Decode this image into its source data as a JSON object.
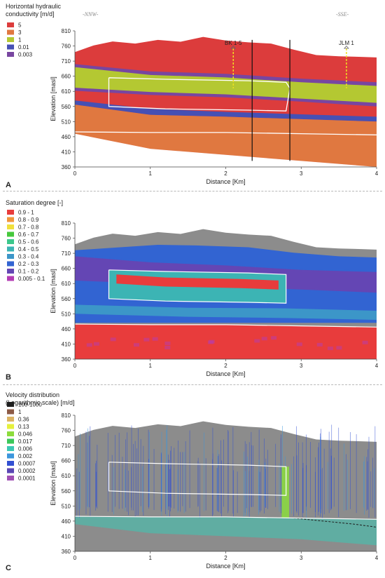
{
  "chart_data": [
    {
      "type": "heatmap",
      "panel_label": "A",
      "legend_title": "Horizontal hydraulic\nconductivity [m/d]",
      "xlabel": "Distance [Km]",
      "ylabel": "Elevation [masl]",
      "xlim": [
        0,
        4
      ],
      "ylim": [
        360,
        810
      ],
      "xticks": [
        0,
        1,
        2,
        3,
        4
      ],
      "yticks": [
        810,
        760,
        710,
        660,
        610,
        560,
        510,
        460,
        410,
        360
      ],
      "direction_left": "-NNW-",
      "direction_right": "-SSE-",
      "legend": [
        {
          "label": "5",
          "color": "#dc3c3c"
        },
        {
          "label": "3",
          "color": "#e07840"
        },
        {
          "label": "1",
          "color": "#b4c832"
        },
        {
          "label": "0.01",
          "color": "#4650b4"
        },
        {
          "label": "0.003",
          "color": "#7846a0"
        }
      ],
      "wells": [
        {
          "name": "BK 1-5",
          "x": 2.1
        },
        {
          "name": "JLM 1",
          "x": 3.6
        }
      ],
      "faults_x": [
        2.35,
        2.85
      ]
    },
    {
      "type": "heatmap",
      "panel_label": "B",
      "legend_title": "Saturation degree [-]",
      "xlabel": "Distance [Km]",
      "ylabel": "Elevation [masl]",
      "xlim": [
        0,
        4
      ],
      "ylim": [
        360,
        810
      ],
      "xticks": [
        0,
        1,
        2,
        3,
        4
      ],
      "yticks": [
        810,
        760,
        710,
        660,
        610,
        560,
        510,
        460,
        410,
        360
      ],
      "legend": [
        {
          "label": "0.9 - 1",
          "color": "#e83c3c"
        },
        {
          "label": "0.8 - 0.9",
          "color": "#f0963c"
        },
        {
          "label": "0.7 - 0.8",
          "color": "#f0e03c"
        },
        {
          "label": "0.6 - 0.7",
          "color": "#46c83c"
        },
        {
          "label": "0.5 - 0.6",
          "color": "#3cc88c"
        },
        {
          "label": "0.4 - 0.5",
          "color": "#3cb4b4"
        },
        {
          "label": "0.3 - 0.4",
          "color": "#3c96c8"
        },
        {
          "label": "0.2 - 0.3",
          "color": "#3264d2"
        },
        {
          "label": "0.1 - 0.2",
          "color": "#6446b4"
        },
        {
          "label": "0.005 - 0.1",
          "color": "#b43cb4"
        }
      ]
    },
    {
      "type": "heatmap",
      "panel_label": "C",
      "legend_title": "Velocity distribution\n(Logarithmic scale) [m/d]",
      "xlabel": "Distance [Km]",
      "ylabel": "Elevation [masl]",
      "xlim": [
        0,
        4
      ],
      "ylim": [
        360,
        810
      ],
      "xticks": [
        0,
        1,
        2,
        3,
        4
      ],
      "yticks": [
        810,
        760,
        710,
        660,
        610,
        560,
        510,
        460,
        410,
        360
      ],
      "legend": [
        {
          "label": "100-1000",
          "color": "#1e1e1e"
        },
        {
          "label": "1",
          "color": "#8c5a46"
        },
        {
          "label": "0.36",
          "color": "#dcb464"
        },
        {
          "label": "0.13",
          "color": "#e6f03c"
        },
        {
          "label": "0.046",
          "color": "#8cdc3c"
        },
        {
          "label": "0.017",
          "color": "#3cc85a"
        },
        {
          "label": "0.006",
          "color": "#3cc8b4"
        },
        {
          "label": "0.002",
          "color": "#3c96dc"
        },
        {
          "label": "0.0007",
          "color": "#3250d2"
        },
        {
          "label": "0.0002",
          "color": "#5a46b4"
        },
        {
          "label": "0.0001",
          "color": "#a050b4"
        }
      ]
    }
  ]
}
